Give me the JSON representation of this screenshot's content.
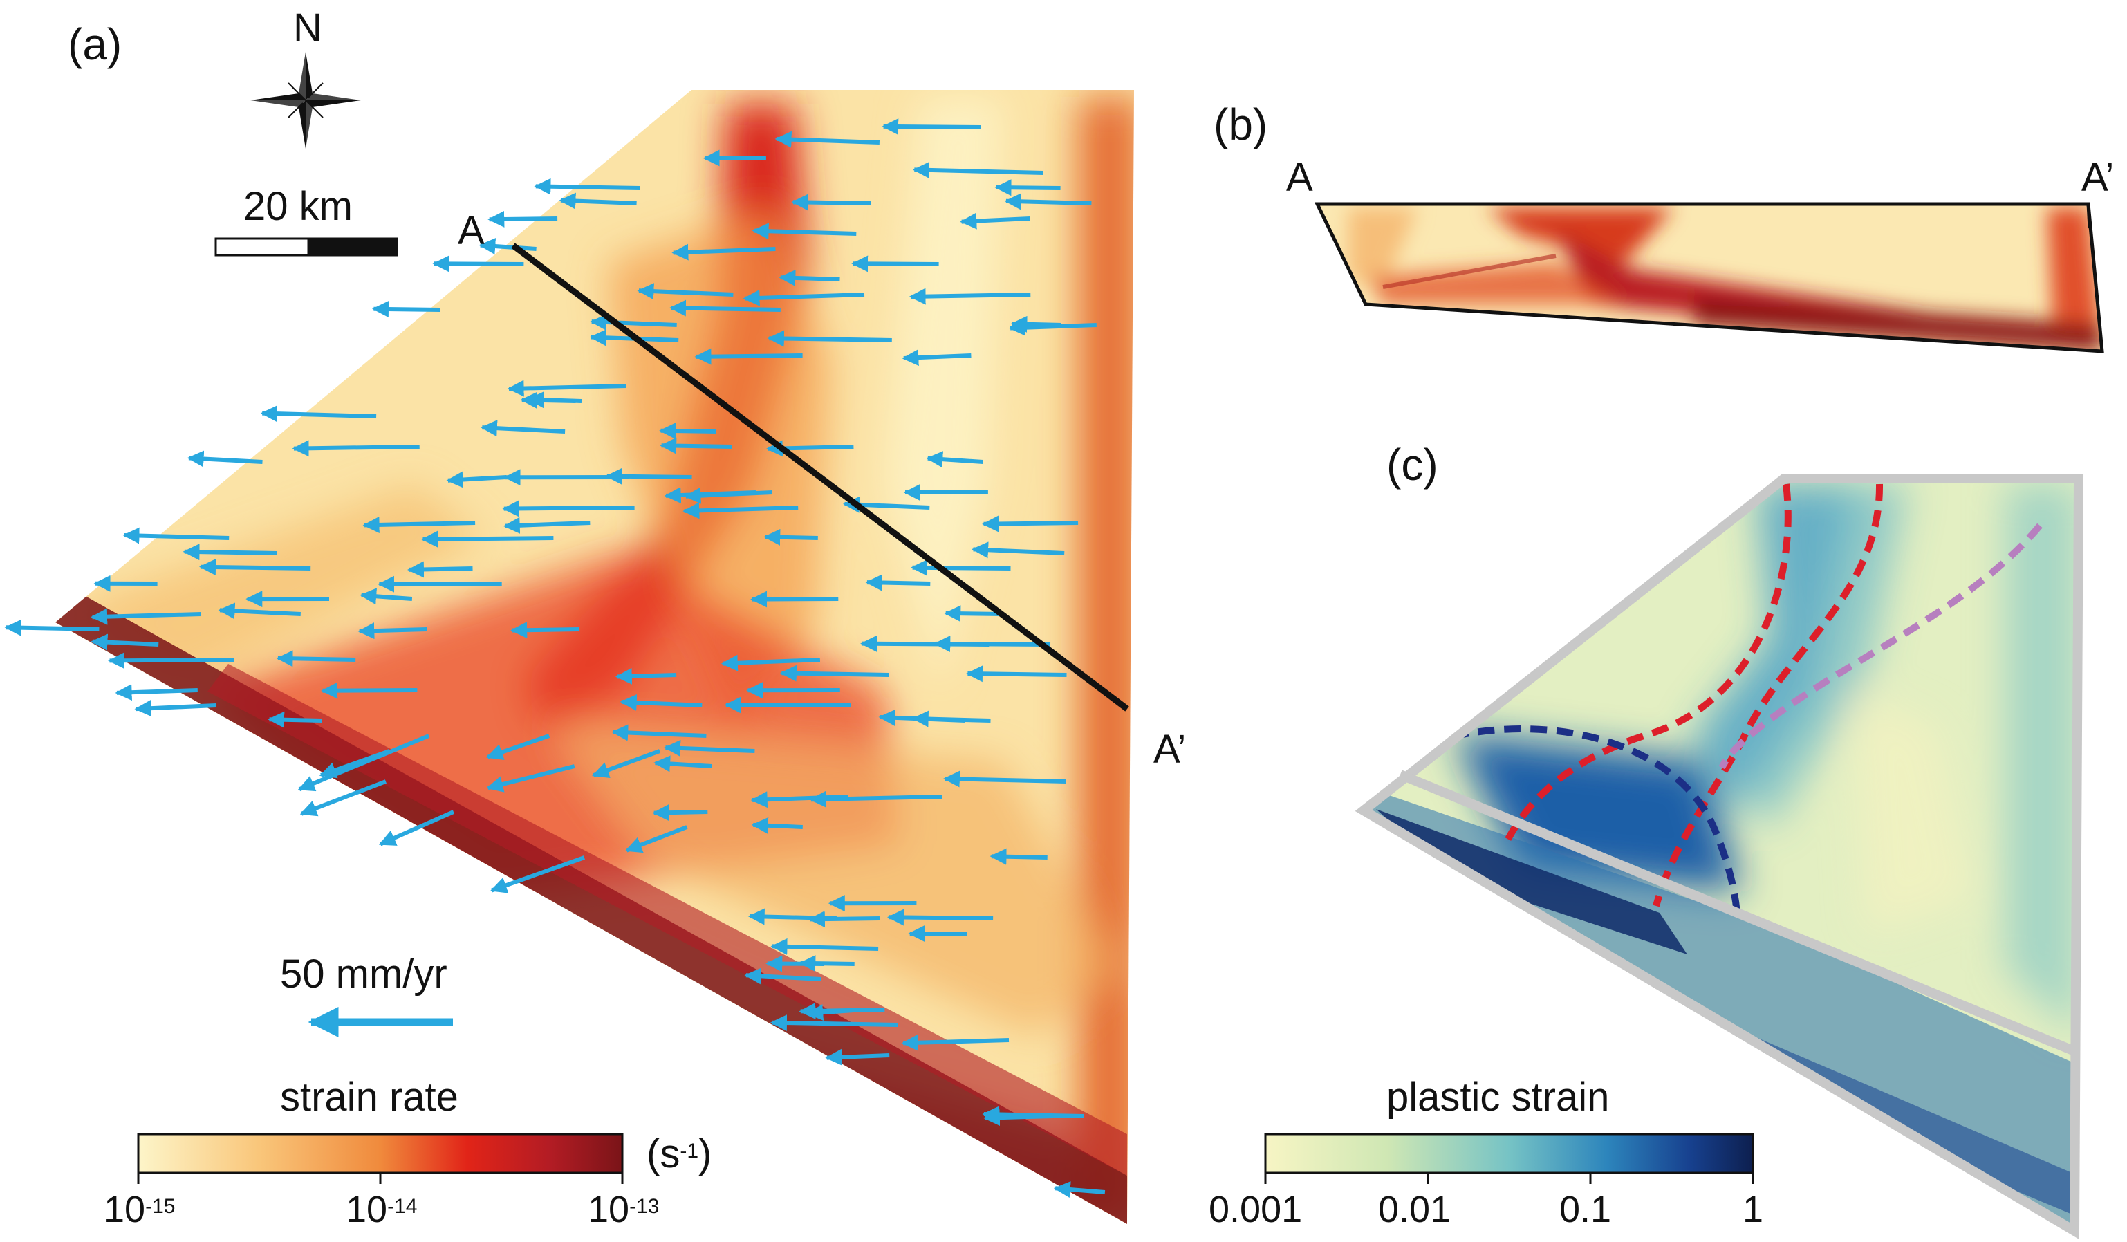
{
  "panels": {
    "a": {
      "label": "(a)",
      "compass_label": "N",
      "scale_bar_label": "20 km",
      "profile_start": "A",
      "profile_end": "A’",
      "velocity_label": "50 mm/yr",
      "colorbar": {
        "title": "strain rate",
        "unit_base": "(s",
        "unit_exp": "-1",
        "unit_close": ")",
        "ticks": [
          {
            "base": "10",
            "exp": "-15"
          },
          {
            "base": "10",
            "exp": "-14"
          },
          {
            "base": "10",
            "exp": "-13"
          }
        ],
        "colors": [
          "#fdf5c9",
          "#f9c67a",
          "#f08a3c",
          "#e12418",
          "#b31c24",
          "#7a1418"
        ]
      }
    },
    "b": {
      "label": "(b)",
      "profile_start": "A",
      "profile_end": "A’"
    },
    "c": {
      "label": "(c)",
      "colorbar": {
        "title": "plastic strain",
        "ticks": [
          "0.001",
          "0.01",
          "0.1",
          "1"
        ],
        "colors": [
          "#f7f5c4",
          "#cfe7b4",
          "#76c3c5",
          "#2d85bc",
          "#17418f",
          "#0d1f4f"
        ]
      },
      "curve_colors": {
        "red": "#dd1f2a",
        "navy": "#1c2f86",
        "violet": "#b77fbf"
      }
    }
  }
}
